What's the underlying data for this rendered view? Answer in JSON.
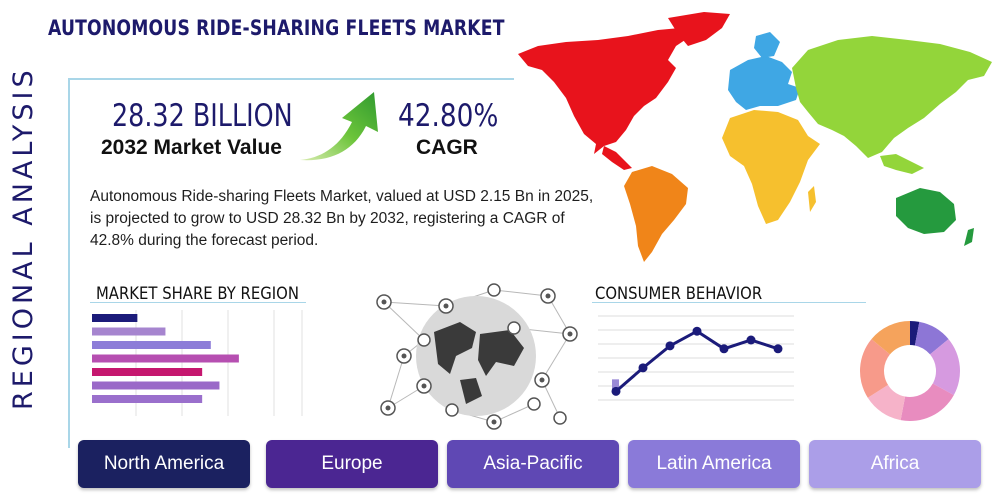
{
  "header": {
    "title": "AUTONOMOUS RIDE-SHARING FLEETS MARKET",
    "side_label": "REGIONAL ANALYSIS"
  },
  "kpis": {
    "market_value": "28.32 BILLION",
    "market_value_label": "2032 Market Value",
    "cagr": "42.80%",
    "cagr_label": "CAGR"
  },
  "summary": "Autonomous Ride-sharing Fleets Market, valued at USD 2.15 Bn in 2025, is projected to grow to USD 28.32 Bn by 2032, registering a CAGR of 42.8% during the forecast period.",
  "sections": {
    "market_share": "MARKET SHARE BY REGION",
    "consumer_behavior": "CONSUMER BEHAVIOR"
  },
  "map_colors": {
    "north_america": "#e8131c",
    "south_america": "#f08519",
    "europe": "#3fa7e4",
    "africa": "#f6c02e",
    "asia": "#93d53a",
    "oceania": "#259a3e",
    "greenland": "#e8131c"
  },
  "regions": [
    {
      "label": "North America",
      "color": "#1b2160"
    },
    {
      "label": "Europe",
      "color": "#4b2692"
    },
    {
      "label": "Asia-Pacific",
      "color": "#5f48b4"
    },
    {
      "label": "Latin America",
      "color": "#8a7ad9"
    },
    {
      "label": "Africa",
      "color": "#ab9ee8"
    }
  ],
  "chart_data": [
    {
      "type": "bar",
      "orientation": "horizontal",
      "values": [
        0.21,
        0.34,
        0.55,
        0.68,
        0.51,
        0.59,
        0.51
      ],
      "colors": [
        "#1b1b7a",
        "#a685cf",
        "#8d7dd8",
        "#b64fb1",
        "#c5176f",
        "#9a69c8",
        "#9a6fcc"
      ],
      "grid": true
    },
    {
      "type": "line",
      "values": [
        1,
        2.6,
        4.1,
        5.1,
        3.9,
        4.5,
        3.9
      ],
      "color": "#1b1b7a",
      "grid": true
    },
    {
      "type": "pie",
      "values": [
        3,
        11,
        19,
        20,
        13,
        20,
        14
      ],
      "colors": [
        "#1b1b7a",
        "#8d76d6",
        "#d69ae0",
        "#e88cbf",
        "#f6b3c9",
        "#f79a8a",
        "#f5a35c"
      ],
      "donut": true
    }
  ]
}
